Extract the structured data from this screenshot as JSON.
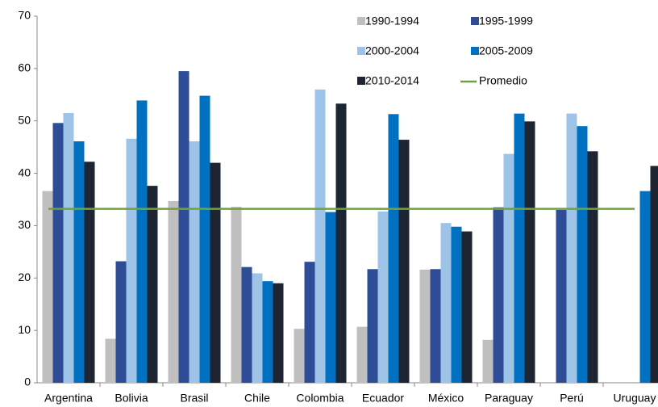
{
  "chart_data": {
    "type": "bar",
    "categories": [
      "Argentina",
      "Bolivia",
      "Brasil",
      "Chile",
      "Colombia",
      "Ecuador",
      "México",
      "Paraguay",
      "Perú",
      "Uruguay"
    ],
    "series": [
      {
        "name": "1990-1994",
        "color": "#bfbfbf",
        "values": [
          36.6,
          8.4,
          34.7,
          33.6,
          10.3,
          10.7,
          21.6,
          8.2,
          null,
          null
        ]
      },
      {
        "name": "1995-1999",
        "color": "#2f4d96",
        "values": [
          49.6,
          23.2,
          59.5,
          22.1,
          23.1,
          21.7,
          21.7,
          33.5,
          33.0,
          null
        ]
      },
      {
        "name": "2000-2004",
        "color": "#9dc3e6",
        "values": [
          51.5,
          46.6,
          46.1,
          20.9,
          56.0,
          32.7,
          30.5,
          43.7,
          51.4,
          null
        ]
      },
      {
        "name": "2005-2009",
        "color": "#0070c0",
        "values": [
          46.1,
          53.9,
          54.8,
          19.4,
          32.6,
          51.3,
          29.8,
          51.4,
          49.0,
          36.6
        ]
      },
      {
        "name": "2010-2014",
        "color": "#1e2532",
        "values": [
          42.2,
          37.6,
          42.0,
          19.0,
          53.3,
          46.4,
          28.9,
          49.9,
          44.2,
          41.4
        ]
      }
    ],
    "average": {
      "name": "Promedio",
      "color": "#70a23c",
      "value": 33.2
    },
    "ylim": [
      0,
      70
    ],
    "yticks": [
      0,
      10,
      20,
      30,
      40,
      50,
      60,
      70
    ]
  }
}
